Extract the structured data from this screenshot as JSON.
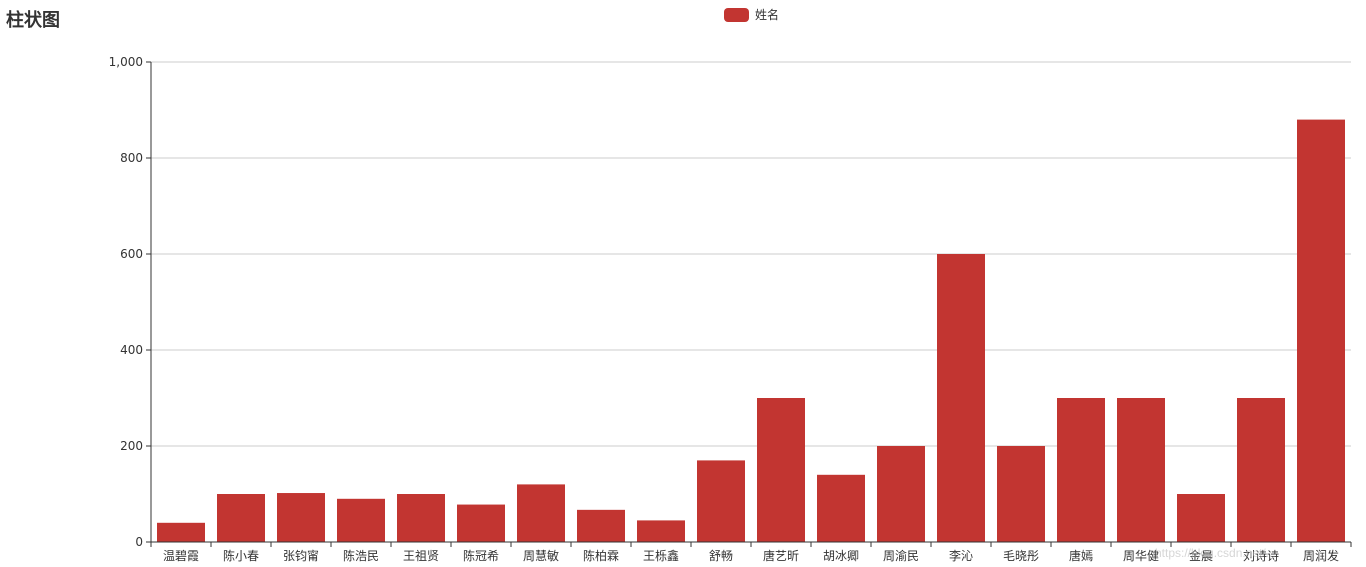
{
  "chart_data": {
    "type": "bar",
    "title": "柱状图",
    "legend": {
      "items": [
        "姓名"
      ],
      "position": "top-center"
    },
    "categories": [
      "温碧霞",
      "陈小春",
      "张钧甯",
      "陈浩民",
      "王祖贤",
      "陈冠希",
      "周慧敏",
      "陈柏霖",
      "王栎鑫",
      "舒畅",
      "唐艺昕",
      "胡冰卿",
      "周渝民",
      "李沁",
      "毛晓彤",
      "唐嫣",
      "周华健",
      "金晨",
      "刘诗诗",
      "周润发"
    ],
    "series": [
      {
        "name": "姓名",
        "values": [
          40,
          100,
          102,
          90,
          100,
          78,
          120,
          67,
          45,
          170,
          300,
          140,
          200,
          600,
          200,
          300,
          300,
          100,
          300,
          880
        ]
      }
    ],
    "ylim": [
      0,
      1000
    ],
    "yticks": [
      0,
      200,
      400,
      600,
      800,
      1000
    ],
    "ytick_labels": [
      "0",
      "200",
      "400",
      "600",
      "800",
      "1,000"
    ],
    "grid": true,
    "bar_color": "#c23531",
    "xlabel": "",
    "ylabel": ""
  },
  "watermark": "https://blog.csdn.net/..."
}
